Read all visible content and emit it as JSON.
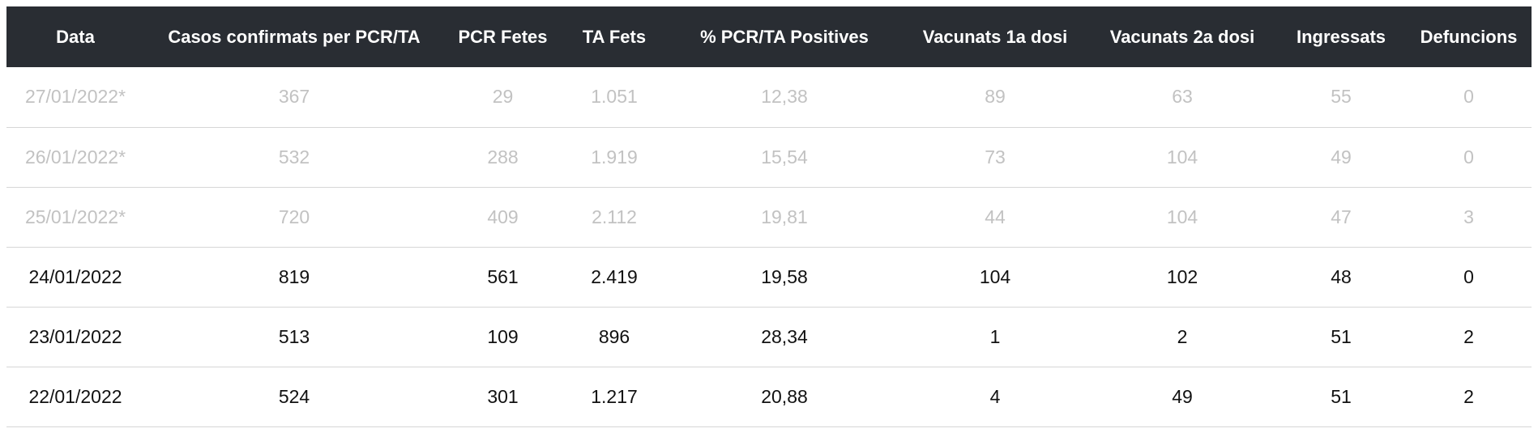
{
  "table": {
    "headers": [
      "Data",
      "Casos confirmats per PCR/TA",
      "PCR Fetes",
      "TA Fets",
      "% PCR/TA Positives",
      "Vacunats 1a dosi",
      "Vacunats 2a dosi",
      "Ingressats",
      "Defuncions"
    ],
    "rows": [
      [
        "27/01/2022*",
        "367",
        "29",
        "1.051",
        "12,38",
        "89",
        "63",
        "55",
        "0"
      ],
      [
        "26/01/2022*",
        "532",
        "288",
        "1.919",
        "15,54",
        "73",
        "104",
        "49",
        "0"
      ],
      [
        "25/01/2022*",
        "720",
        "409",
        "2.112",
        "19,81",
        "44",
        "104",
        "47",
        "3"
      ],
      [
        "24/01/2022",
        "819",
        "561",
        "2.419",
        "19,58",
        "104",
        "102",
        "48",
        "0"
      ],
      [
        "23/01/2022",
        "513",
        "109",
        "896",
        "28,34",
        "1",
        "2",
        "51",
        "2"
      ],
      [
        "22/01/2022",
        "524",
        "301",
        "1.217",
        "20,88",
        "4",
        "49",
        "51",
        "2"
      ]
    ]
  },
  "colors": {
    "header_bg": "#292d33",
    "header_text": "#ffffff",
    "provisional_text": "#c2c2c2",
    "text": "#111111",
    "row_border": "#d6d6d6"
  }
}
